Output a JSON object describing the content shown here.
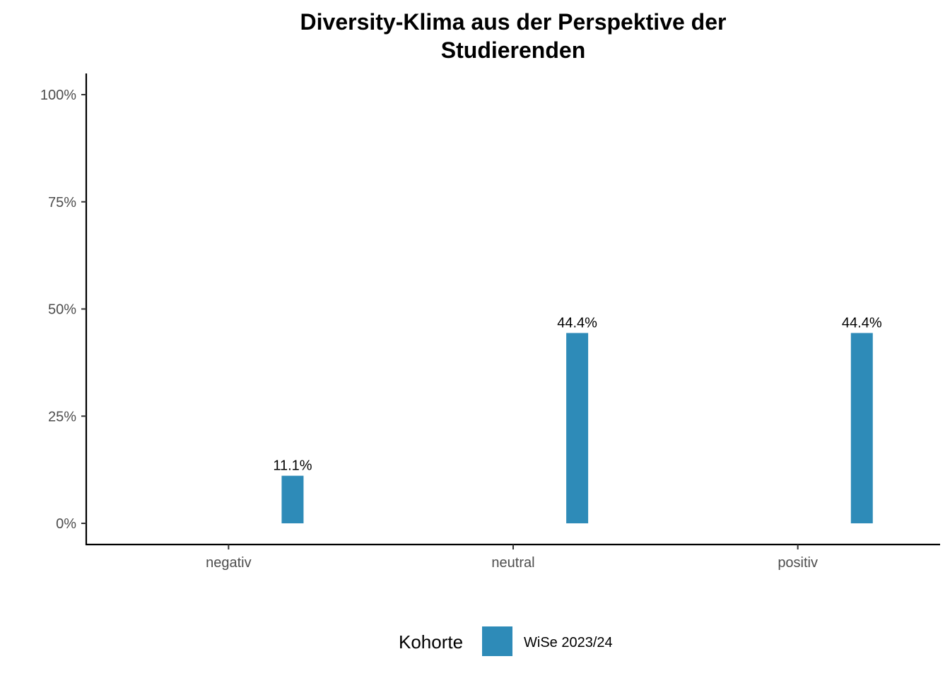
{
  "chart_data": {
    "type": "bar",
    "title": "Diversity-Klima aus der Perspektive der Studierenden",
    "title_lines": [
      "Diversity-Klima aus der Perspektive der",
      "Studierenden"
    ],
    "categories": [
      "negativ",
      "neutral",
      "positiv"
    ],
    "series": [
      {
        "name": "WiSe 2023/24",
        "color": "#2E8BB8",
        "values": [
          11.1,
          44.4,
          44.4
        ],
        "labels": [
          "11.1%",
          "44.4%",
          "44.4%"
        ]
      }
    ],
    "ylim": [
      0,
      100
    ],
    "yticks": [
      0,
      25,
      50,
      75,
      100
    ],
    "ytick_labels": [
      "0%",
      "25%",
      "50%",
      "75%",
      "100%"
    ],
    "xlabel": "",
    "ylabel": "",
    "grid": false,
    "legend": {
      "position": "bottom",
      "title": "Kohorte",
      "entries": [
        "WiSe 2023/24"
      ]
    }
  }
}
